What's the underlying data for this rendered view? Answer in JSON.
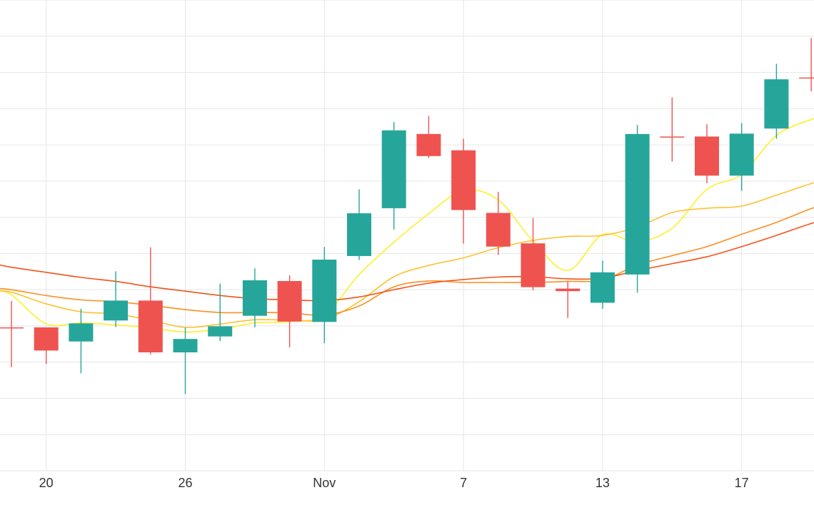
{
  "chart_data": {
    "type": "candlestick",
    "grid": true,
    "background": "#ffffff",
    "colors": {
      "up": "#26a69a",
      "down": "#ef5350",
      "grid": "#e6e6e6",
      "axis_text": "#333333",
      "ma_yellow": "#fdf02a",
      "ma_gold": "#fdc12e",
      "ma_orange": "#fd8f1f",
      "ma_red": "#f45217"
    },
    "x_ticks": [
      {
        "day": 1,
        "label": "20"
      },
      {
        "day": 5,
        "label": "26"
      },
      {
        "day": 9,
        "label": "Nov"
      },
      {
        "day": 13,
        "label": "7"
      },
      {
        "day": 17,
        "label": "13"
      },
      {
        "day": 21,
        "label": "17"
      }
    ],
    "y_range": [
      0,
      13
    ],
    "y_gridlines": [
      0,
      1,
      2,
      3,
      4,
      5,
      6,
      7,
      8,
      9,
      10,
      11,
      12,
      13
    ],
    "candles": [
      {
        "day": 0,
        "open": 3.96,
        "high": 4.69,
        "low": 2.86,
        "close": 3.96
      },
      {
        "day": 1,
        "open": 3.96,
        "high": 3.96,
        "low": 2.95,
        "close": 3.32
      },
      {
        "day": 2,
        "open": 3.57,
        "high": 4.47,
        "low": 2.69,
        "close": 4.07
      },
      {
        "day": 3,
        "open": 4.15,
        "high": 5.51,
        "low": 3.97,
        "close": 4.7
      },
      {
        "day": 4,
        "open": 4.7,
        "high": 6.17,
        "low": 3.21,
        "close": 3.27
      },
      {
        "day": 5,
        "open": 3.27,
        "high": 3.95,
        "low": 2.12,
        "close": 3.64
      },
      {
        "day": 6,
        "open": 3.71,
        "high": 5.17,
        "low": 3.58,
        "close": 3.99
      },
      {
        "day": 7,
        "open": 4.28,
        "high": 5.59,
        "low": 3.96,
        "close": 5.26
      },
      {
        "day": 8,
        "open": 5.24,
        "high": 5.4,
        "low": 3.41,
        "close": 4.12
      },
      {
        "day": 9,
        "open": 4.11,
        "high": 6.18,
        "low": 3.52,
        "close": 5.83
      },
      {
        "day": 10,
        "open": 5.93,
        "high": 7.77,
        "low": 5.82,
        "close": 7.11
      },
      {
        "day": 11,
        "open": 7.25,
        "high": 9.63,
        "low": 6.66,
        "close": 9.4
      },
      {
        "day": 12,
        "open": 9.3,
        "high": 9.8,
        "low": 8.64,
        "close": 8.69
      },
      {
        "day": 13,
        "open": 8.85,
        "high": 9.17,
        "low": 6.27,
        "close": 7.2
      },
      {
        "day": 14,
        "open": 7.12,
        "high": 7.7,
        "low": 5.96,
        "close": 6.19
      },
      {
        "day": 15,
        "open": 6.28,
        "high": 6.98,
        "low": 4.98,
        "close": 5.07
      },
      {
        "day": 16,
        "open": 5.03,
        "high": 5.23,
        "low": 4.22,
        "close": 4.96
      },
      {
        "day": 17,
        "open": 4.64,
        "high": 5.8,
        "low": 4.47,
        "close": 5.48
      },
      {
        "day": 18,
        "open": 5.42,
        "high": 9.55,
        "low": 4.92,
        "close": 9.3
      },
      {
        "day": 19,
        "open": 9.23,
        "high": 10.31,
        "low": 8.54,
        "close": 9.23
      },
      {
        "day": 20,
        "open": 9.23,
        "high": 9.57,
        "low": 7.94,
        "close": 8.15
      },
      {
        "day": 21,
        "open": 8.15,
        "high": 9.6,
        "low": 7.73,
        "close": 9.31
      },
      {
        "day": 22,
        "open": 9.45,
        "high": 11.24,
        "low": 9.17,
        "close": 10.81
      },
      {
        "day": 23,
        "open": 10.86,
        "high": 11.95,
        "low": 10.48,
        "close": 10.86
      }
    ],
    "moving_averages": [
      {
        "color_key": "ma_yellow",
        "points": [
          [
            -0.5,
            4.98
          ],
          [
            0,
            4.86
          ],
          [
            1,
            4.06
          ],
          [
            2,
            4.08
          ],
          [
            3,
            4.03
          ],
          [
            4,
            3.95
          ],
          [
            5,
            3.83
          ],
          [
            6,
            3.91
          ],
          [
            7,
            4.08
          ],
          [
            8,
            4.12
          ],
          [
            9,
            4.3
          ],
          [
            10,
            5.42
          ],
          [
            11,
            6.31
          ],
          [
            12,
            7.1
          ],
          [
            13,
            7.74
          ],
          [
            14,
            7.48
          ],
          [
            15,
            6.34
          ],
          [
            16,
            5.53
          ],
          [
            17,
            6.52
          ],
          [
            18,
            6.32
          ],
          [
            19,
            6.7
          ],
          [
            20,
            7.77
          ],
          [
            21,
            8.19
          ],
          [
            22,
            9.26
          ],
          [
            23,
            9.7
          ],
          [
            23.5,
            9.82
          ]
        ]
      },
      {
        "color_key": "ma_gold",
        "points": [
          [
            -0.5,
            4.96
          ],
          [
            0,
            4.93
          ],
          [
            1,
            4.61
          ],
          [
            2,
            4.39
          ],
          [
            3,
            4.33
          ],
          [
            4,
            4.16
          ],
          [
            5,
            3.96
          ],
          [
            6,
            4.05
          ],
          [
            7,
            4.17
          ],
          [
            8,
            4.16
          ],
          [
            9,
            4.18
          ],
          [
            10,
            4.67
          ],
          [
            11,
            5.36
          ],
          [
            12,
            5.67
          ],
          [
            13,
            5.88
          ],
          [
            14,
            6.16
          ],
          [
            15,
            6.36
          ],
          [
            16,
            6.47
          ],
          [
            17,
            6.5
          ],
          [
            18,
            6.73
          ],
          [
            19,
            7.13
          ],
          [
            20,
            7.25
          ],
          [
            21,
            7.31
          ],
          [
            22,
            7.61
          ],
          [
            23,
            7.93
          ],
          [
            23.5,
            8.04
          ]
        ]
      },
      {
        "color_key": "ma_orange",
        "points": [
          [
            -0.5,
            5.04
          ],
          [
            0,
            5.0
          ],
          [
            1,
            4.84
          ],
          [
            2,
            4.72
          ],
          [
            3,
            4.67
          ],
          [
            4,
            4.57
          ],
          [
            5,
            4.45
          ],
          [
            6,
            4.37
          ],
          [
            7,
            4.37
          ],
          [
            8,
            4.36
          ],
          [
            9,
            4.3
          ],
          [
            10,
            4.55
          ],
          [
            11,
            5.08
          ],
          [
            12,
            5.24
          ],
          [
            13,
            5.2
          ],
          [
            14,
            5.2
          ],
          [
            15,
            5.2
          ],
          [
            16,
            5.23
          ],
          [
            17,
            5.27
          ],
          [
            18,
            5.68
          ],
          [
            19,
            5.94
          ],
          [
            20,
            6.19
          ],
          [
            21,
            6.53
          ],
          [
            22,
            6.86
          ],
          [
            23,
            7.24
          ],
          [
            23.5,
            7.38
          ]
        ]
      },
      {
        "color_key": "ma_red",
        "points": [
          [
            -0.5,
            5.72
          ],
          [
            0,
            5.62
          ],
          [
            1,
            5.48
          ],
          [
            2,
            5.34
          ],
          [
            3,
            5.23
          ],
          [
            4,
            5.08
          ],
          [
            5,
            4.96
          ],
          [
            6,
            4.84
          ],
          [
            7,
            4.75
          ],
          [
            8,
            4.72
          ],
          [
            9,
            4.7
          ],
          [
            10,
            4.8
          ],
          [
            11,
            5.0
          ],
          [
            12,
            5.18
          ],
          [
            13,
            5.28
          ],
          [
            14,
            5.35
          ],
          [
            15,
            5.36
          ],
          [
            16,
            5.3
          ],
          [
            17,
            5.32
          ],
          [
            18,
            5.53
          ],
          [
            19,
            5.72
          ],
          [
            20,
            5.91
          ],
          [
            21,
            6.19
          ],
          [
            22,
            6.5
          ],
          [
            23,
            6.83
          ],
          [
            23.5,
            6.96
          ]
        ]
      }
    ]
  }
}
